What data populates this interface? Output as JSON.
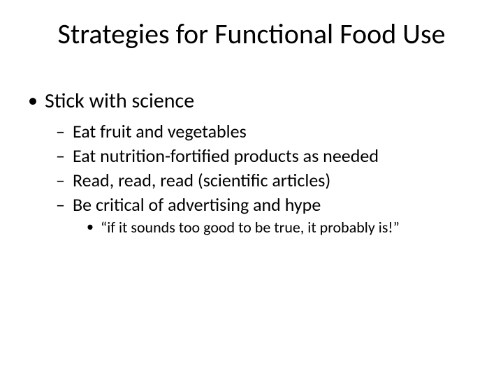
{
  "slide": {
    "title": "Strategies for Functional Food Use",
    "background_color": "#ffffff",
    "text_color": "#000000",
    "font_family": "Calibri",
    "title_fontsize": 40,
    "bullets": {
      "lvl1": {
        "text": "Stick with science",
        "fontsize": 30,
        "marker": "•"
      },
      "lvl2_items": [
        "Eat fruit and vegetables",
        "Eat nutrition-fortified products as needed",
        "Read, read, read (scientific articles)",
        "Be critical of advertising and hype"
      ],
      "lvl2_fontsize": 26,
      "lvl2_marker": "–",
      "lvl3": {
        "text": "“if it sounds too good to be true, it probably is!”",
        "fontsize": 22,
        "marker": "•"
      }
    }
  }
}
